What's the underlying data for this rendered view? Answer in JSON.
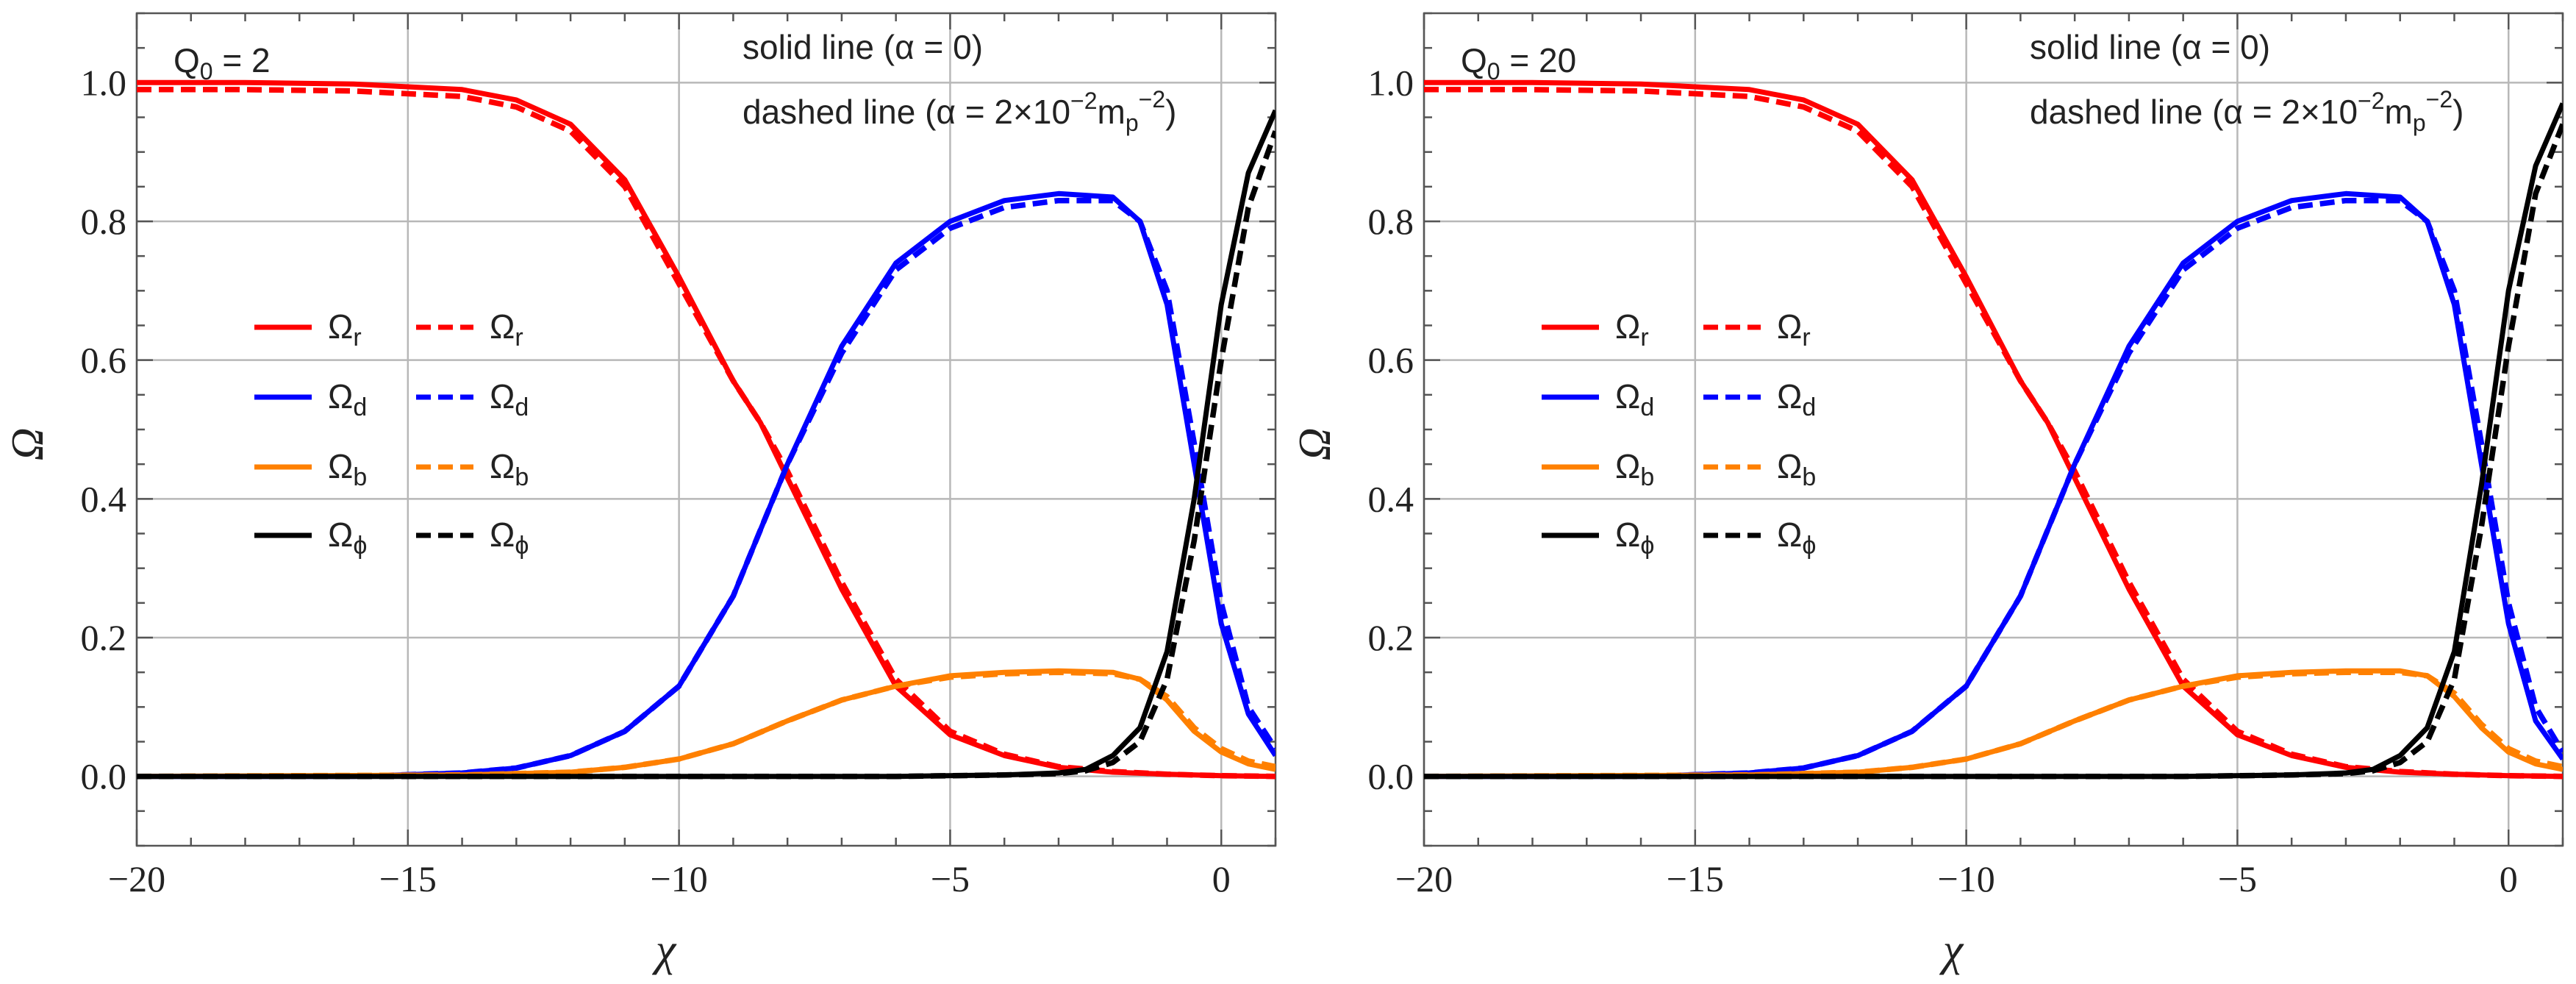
{
  "chart_data": [
    {
      "type": "line",
      "panel_label": "Q",
      "panel_sub": "0",
      "panel_value": "= 2",
      "xlabel": "χ",
      "ylabel": "Ω",
      "xlim": [
        -20,
        1
      ],
      "ylim": [
        -0.1,
        1.1
      ],
      "xticks": [
        -20,
        -15,
        -10,
        -5,
        0
      ],
      "xtick_labels": [
        "−20",
        "−15",
        "−10",
        "−5",
        "0"
      ],
      "yticks": [
        0.0,
        0.2,
        0.4,
        0.6,
        0.8,
        1.0
      ],
      "ytick_labels": [
        "0.0",
        "0.2",
        "0.4",
        "0.6",
        "0.8",
        "1.0"
      ],
      "grid": true,
      "annotations": {
        "solid": "solid line (α = 0)",
        "dashed_pre": "dashed line (α = 2×10",
        "dashed_exp": "−2",
        "dashed_mid": "m",
        "dashed_sub": "p",
        "dashed_exp2": "−2",
        "dashed_post": ")"
      },
      "legend_placement": "center-left",
      "series": [
        {
          "name": "Ω_r",
          "label_base": "Ω",
          "label_sub": "r",
          "color": "#ff0000",
          "style": "solid",
          "x": [
            -20,
            -18,
            -16,
            -14,
            -13,
            -12,
            -11,
            -10,
            -9,
            -8.5,
            -8,
            -7.5,
            -7,
            -6,
            -5,
            -4,
            -3,
            -2,
            -1,
            0,
            1
          ],
          "y": [
            1.0,
            1.0,
            0.998,
            0.99,
            0.975,
            0.94,
            0.86,
            0.72,
            0.57,
            0.51,
            0.43,
            0.35,
            0.27,
            0.13,
            0.06,
            0.03,
            0.013,
            0.006,
            0.003,
            0.001,
            0.0
          ]
        },
        {
          "name": "Ω_r (α≠0)",
          "label_base": "Ω",
          "label_sub": "r",
          "color": "#ff0000",
          "style": "dashed",
          "x": [
            -20,
            -18,
            -16,
            -14,
            -13,
            -12,
            -11,
            -10,
            -9,
            -8.5,
            -8,
            -7.5,
            -7,
            -6,
            -5,
            -4,
            -3,
            -2,
            -1,
            0,
            1
          ],
          "y": [
            0.99,
            0.99,
            0.988,
            0.98,
            0.965,
            0.93,
            0.85,
            0.71,
            0.57,
            0.51,
            0.44,
            0.36,
            0.28,
            0.14,
            0.065,
            0.032,
            0.014,
            0.007,
            0.003,
            0.001,
            0.0
          ]
        },
        {
          "name": "Ω_d",
          "label_base": "Ω",
          "label_sub": "d",
          "color": "#0000ff",
          "style": "solid",
          "x": [
            -20,
            -16,
            -14,
            -13,
            -12,
            -11,
            -10,
            -9,
            -8,
            -7,
            -6,
            -5,
            -4,
            -3,
            -2,
            -1.5,
            -1,
            -0.5,
            0,
            0.5,
            1
          ],
          "y": [
            0.0,
            0.0,
            0.005,
            0.012,
            0.03,
            0.065,
            0.13,
            0.26,
            0.45,
            0.62,
            0.74,
            0.8,
            0.83,
            0.84,
            0.835,
            0.8,
            0.68,
            0.45,
            0.22,
            0.09,
            0.03
          ]
        },
        {
          "name": "Ω_d (α≠0)",
          "label_base": "Ω",
          "label_sub": "d",
          "color": "#0000ff",
          "style": "dashed",
          "x": [
            -20,
            -16,
            -14,
            -13,
            -12,
            -11,
            -10,
            -9,
            -8,
            -7,
            -6,
            -5,
            -4,
            -3,
            -2,
            -1.5,
            -1,
            -0.5,
            0,
            0.5,
            1
          ],
          "y": [
            0.0,
            0.0,
            0.005,
            0.012,
            0.03,
            0.065,
            0.13,
            0.26,
            0.45,
            0.61,
            0.73,
            0.79,
            0.82,
            0.83,
            0.83,
            0.8,
            0.7,
            0.48,
            0.25,
            0.1,
            0.04
          ]
        },
        {
          "name": "Ω_b",
          "label_base": "Ω",
          "label_sub": "b",
          "color": "#ff8000",
          "style": "solid",
          "x": [
            -20,
            -14,
            -12,
            -11,
            -10,
            -9,
            -8,
            -7,
            -6,
            -5,
            -4,
            -3,
            -2,
            -1.5,
            -1,
            -0.5,
            0,
            0.5,
            1
          ],
          "y": [
            0.0,
            0.002,
            0.006,
            0.013,
            0.025,
            0.047,
            0.08,
            0.11,
            0.13,
            0.145,
            0.15,
            0.152,
            0.15,
            0.14,
            0.11,
            0.065,
            0.035,
            0.018,
            0.01
          ]
        },
        {
          "name": "Ω_b (α≠0)",
          "label_base": "Ω",
          "label_sub": "b",
          "color": "#ff8000",
          "style": "dashed",
          "x": [
            -20,
            -14,
            -12,
            -11,
            -10,
            -9,
            -8,
            -7,
            -6,
            -5,
            -4,
            -3,
            -2,
            -1.5,
            -1,
            -0.5,
            0,
            0.5,
            1
          ],
          "y": [
            0.0,
            0.002,
            0.006,
            0.013,
            0.025,
            0.047,
            0.08,
            0.11,
            0.13,
            0.143,
            0.148,
            0.15,
            0.148,
            0.14,
            0.115,
            0.07,
            0.04,
            0.022,
            0.014
          ]
        },
        {
          "name": "Ω_φ",
          "label_base": "Ω",
          "label_sub": "ϕ",
          "color": "#000000",
          "style": "solid",
          "x": [
            -20,
            -6,
            -4,
            -3,
            -2.5,
            -2,
            -1.5,
            -1,
            -0.5,
            0,
            0.5,
            1
          ],
          "y": [
            0.0,
            0.0,
            0.002,
            0.005,
            0.01,
            0.03,
            0.07,
            0.18,
            0.4,
            0.68,
            0.87,
            0.96
          ]
        },
        {
          "name": "Ω_φ (α≠0)",
          "label_base": "Ω",
          "label_sub": "ϕ",
          "color": "#000000",
          "style": "dashed",
          "x": [
            -20,
            -6,
            -4,
            -3,
            -2.5,
            -2,
            -1.5,
            -1,
            -0.5,
            0,
            0.5,
            1
          ],
          "y": [
            0.0,
            0.0,
            0.002,
            0.004,
            0.008,
            0.02,
            0.05,
            0.14,
            0.34,
            0.6,
            0.82,
            0.93
          ]
        }
      ]
    },
    {
      "type": "line",
      "panel_label": "Q",
      "panel_sub": "0",
      "panel_value": "= 20",
      "xlabel": "χ",
      "ylabel": "Ω",
      "xlim": [
        -20,
        1
      ],
      "ylim": [
        -0.1,
        1.1
      ],
      "xticks": [
        -20,
        -15,
        -10,
        -5,
        0
      ],
      "xtick_labels": [
        "−20",
        "−15",
        "−10",
        "−5",
        "0"
      ],
      "yticks": [
        0.0,
        0.2,
        0.4,
        0.6,
        0.8,
        1.0
      ],
      "ytick_labels": [
        "0.0",
        "0.2",
        "0.4",
        "0.6",
        "0.8",
        "1.0"
      ],
      "grid": true,
      "annotations": {
        "solid": "solid line (α = 0)",
        "dashed_pre": "dashed line (α = 2×10",
        "dashed_exp": "−2",
        "dashed_mid": "m",
        "dashed_sub": "p",
        "dashed_exp2": "−2",
        "dashed_post": ")"
      },
      "legend_placement": "center-left",
      "series": [
        {
          "name": "Ω_r",
          "label_base": "Ω",
          "label_sub": "r",
          "color": "#ff0000",
          "style": "solid",
          "x": [
            -20,
            -18,
            -16,
            -14,
            -13,
            -12,
            -11,
            -10,
            -9,
            -8.5,
            -8,
            -7.5,
            -7,
            -6,
            -5,
            -4,
            -3,
            -2,
            -1,
            0,
            1
          ],
          "y": [
            1.0,
            1.0,
            0.998,
            0.99,
            0.975,
            0.94,
            0.86,
            0.72,
            0.57,
            0.51,
            0.43,
            0.35,
            0.27,
            0.13,
            0.06,
            0.03,
            0.013,
            0.006,
            0.003,
            0.001,
            0.0
          ]
        },
        {
          "name": "Ω_r (α≠0)",
          "label_base": "Ω",
          "label_sub": "r",
          "color": "#ff0000",
          "style": "dashed",
          "x": [
            -20,
            -18,
            -16,
            -14,
            -13,
            -12,
            -11,
            -10,
            -9,
            -8.5,
            -8,
            -7.5,
            -7,
            -6,
            -5,
            -4,
            -3,
            -2,
            -1,
            0,
            1
          ],
          "y": [
            0.99,
            0.99,
            0.988,
            0.98,
            0.965,
            0.93,
            0.85,
            0.71,
            0.57,
            0.51,
            0.44,
            0.36,
            0.28,
            0.14,
            0.065,
            0.032,
            0.014,
            0.007,
            0.003,
            0.001,
            0.0
          ]
        },
        {
          "name": "Ω_d",
          "label_base": "Ω",
          "label_sub": "d",
          "color": "#0000ff",
          "style": "solid",
          "x": [
            -20,
            -16,
            -14,
            -13,
            -12,
            -11,
            -10,
            -9,
            -8,
            -7,
            -6,
            -5,
            -4,
            -3,
            -2,
            -1.5,
            -1,
            -0.5,
            0,
            0.5,
            1
          ],
          "y": [
            0.0,
            0.0,
            0.005,
            0.012,
            0.03,
            0.065,
            0.13,
            0.26,
            0.45,
            0.62,
            0.74,
            0.8,
            0.83,
            0.84,
            0.835,
            0.8,
            0.68,
            0.45,
            0.22,
            0.08,
            0.025
          ]
        },
        {
          "name": "Ω_d (α≠0)",
          "label_base": "Ω",
          "label_sub": "d",
          "color": "#0000ff",
          "style": "dashed",
          "x": [
            -20,
            -16,
            -14,
            -13,
            -12,
            -11,
            -10,
            -9,
            -8,
            -7,
            -6,
            -5,
            -4,
            -3,
            -2,
            -1.5,
            -1,
            -0.5,
            0,
            0.5,
            1
          ],
          "y": [
            0.0,
            0.0,
            0.005,
            0.012,
            0.03,
            0.065,
            0.13,
            0.26,
            0.45,
            0.61,
            0.73,
            0.79,
            0.82,
            0.83,
            0.83,
            0.8,
            0.7,
            0.48,
            0.25,
            0.1,
            0.035
          ]
        },
        {
          "name": "Ω_b",
          "label_base": "Ω",
          "label_sub": "b",
          "color": "#ff8000",
          "style": "solid",
          "x": [
            -20,
            -14,
            -12,
            -11,
            -10,
            -9,
            -8,
            -7,
            -6,
            -5,
            -4,
            -3,
            -2,
            -1.5,
            -1,
            -0.5,
            0,
            0.5,
            1
          ],
          "y": [
            0.0,
            0.002,
            0.006,
            0.013,
            0.025,
            0.047,
            0.08,
            0.11,
            0.13,
            0.145,
            0.15,
            0.152,
            0.152,
            0.145,
            0.115,
            0.07,
            0.035,
            0.018,
            0.01
          ]
        },
        {
          "name": "Ω_b (α≠0)",
          "label_base": "Ω",
          "label_sub": "b",
          "color": "#ff8000",
          "style": "dashed",
          "x": [
            -20,
            -14,
            -12,
            -11,
            -10,
            -9,
            -8,
            -7,
            -6,
            -5,
            -4,
            -3,
            -2,
            -1.5,
            -1,
            -0.5,
            0,
            0.5,
            1
          ],
          "y": [
            0.0,
            0.002,
            0.006,
            0.013,
            0.025,
            0.047,
            0.08,
            0.11,
            0.13,
            0.143,
            0.148,
            0.15,
            0.15,
            0.145,
            0.12,
            0.075,
            0.04,
            0.022,
            0.014
          ]
        },
        {
          "name": "Ω_φ",
          "label_base": "Ω",
          "label_sub": "ϕ",
          "color": "#000000",
          "style": "solid",
          "x": [
            -20,
            -6,
            -4,
            -3,
            -2.5,
            -2,
            -1.5,
            -1,
            -0.5,
            0,
            0.5,
            1
          ],
          "y": [
            0.0,
            0.0,
            0.002,
            0.005,
            0.01,
            0.03,
            0.07,
            0.18,
            0.42,
            0.7,
            0.88,
            0.97
          ]
        },
        {
          "name": "Ω_φ (α≠0)",
          "label_base": "Ω",
          "label_sub": "ϕ",
          "color": "#000000",
          "style": "dashed",
          "x": [
            -20,
            -6,
            -4,
            -3,
            -2.5,
            -2,
            -1.5,
            -1,
            -0.5,
            0,
            0.5,
            1
          ],
          "y": [
            0.0,
            0.0,
            0.002,
            0.004,
            0.008,
            0.02,
            0.05,
            0.14,
            0.36,
            0.62,
            0.84,
            0.94
          ]
        }
      ]
    }
  ]
}
